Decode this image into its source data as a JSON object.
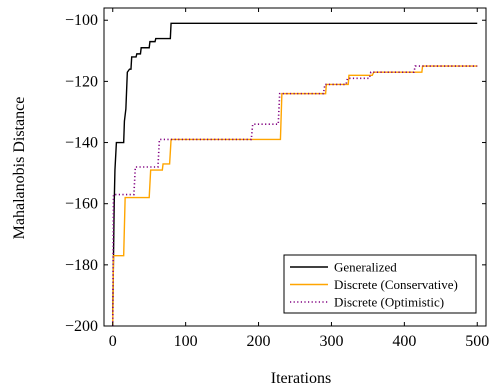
{
  "chart_data": {
    "type": "line",
    "xlabel": "Iterations",
    "ylabel": "Mahalanobis Distance",
    "xlim": [
      -12,
      512
    ],
    "ylim": [
      -200,
      -96
    ],
    "x_ticks": [
      0,
      100,
      200,
      300,
      400,
      500
    ],
    "y_ticks": [
      -200,
      -180,
      -160,
      -140,
      -120,
      -100
    ],
    "x_tick_labels": [
      "0",
      "100",
      "200",
      "300",
      "400",
      "500"
    ],
    "y_tick_labels": [
      "−200",
      "−180",
      "−160",
      "−140",
      "−120",
      "−100"
    ],
    "grid": false,
    "legend_position": "lower-right",
    "series": [
      {
        "name": "Generalized",
        "color": "#000000",
        "dash": "solid",
        "points": [
          [
            0,
            -196
          ],
          [
            2,
            -160
          ],
          [
            3,
            -149
          ],
          [
            5,
            -140
          ],
          [
            15,
            -140
          ],
          [
            16,
            -133
          ],
          [
            18,
            -129
          ],
          [
            20,
            -117
          ],
          [
            23,
            -116
          ],
          [
            25,
            -116
          ],
          [
            26,
            -112
          ],
          [
            32,
            -112
          ],
          [
            33,
            -111
          ],
          [
            38,
            -111
          ],
          [
            39,
            -109
          ],
          [
            50,
            -109
          ],
          [
            51,
            -107
          ],
          [
            58,
            -107
          ],
          [
            59,
            -106
          ],
          [
            79,
            -106
          ],
          [
            80,
            -101
          ],
          [
            500,
            -101
          ]
        ]
      },
      {
        "name": "Discrete (Conservative)",
        "color": "#ffa500",
        "dash": "solid",
        "points": [
          [
            0,
            -200
          ],
          [
            1,
            -177
          ],
          [
            15,
            -177
          ],
          [
            17,
            -158
          ],
          [
            50,
            -158
          ],
          [
            52,
            -149
          ],
          [
            68,
            -149
          ],
          [
            69,
            -147
          ],
          [
            78,
            -147
          ],
          [
            80,
            -139
          ],
          [
            230,
            -139
          ],
          [
            232,
            -124
          ],
          [
            292,
            -124
          ],
          [
            293,
            -121
          ],
          [
            323,
            -121
          ],
          [
            324,
            -118
          ],
          [
            356,
            -118
          ],
          [
            358,
            -117
          ],
          [
            424,
            -117
          ],
          [
            425,
            -115
          ],
          [
            500,
            -115
          ]
        ]
      },
      {
        "name": "Discrete (Optimistic)",
        "color": "#800080",
        "dash": "dotted",
        "points": [
          [
            0,
            -200
          ],
          [
            1,
            -157
          ],
          [
            29,
            -157
          ],
          [
            31,
            -148
          ],
          [
            62,
            -148
          ],
          [
            64,
            -139
          ],
          [
            190,
            -139
          ],
          [
            192,
            -134
          ],
          [
            227,
            -134
          ],
          [
            229,
            -124
          ],
          [
            289,
            -124
          ],
          [
            291,
            -121
          ],
          [
            320,
            -121
          ],
          [
            322,
            -119
          ],
          [
            352,
            -119
          ],
          [
            354,
            -117
          ],
          [
            413,
            -117
          ],
          [
            415,
            -115
          ],
          [
            500,
            -115
          ]
        ]
      }
    ]
  }
}
